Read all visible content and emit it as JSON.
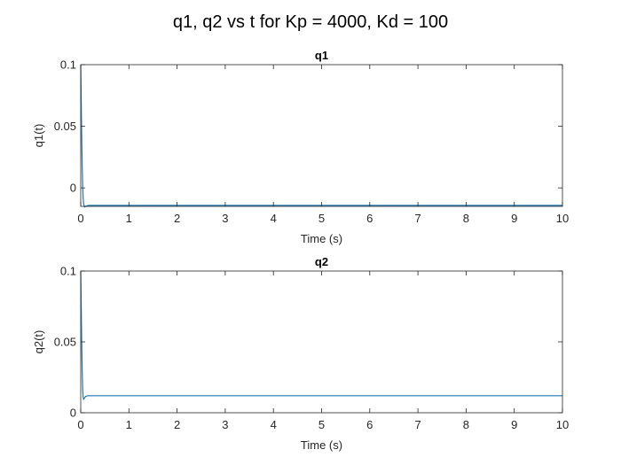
{
  "figure": {
    "title": "q1, q2 vs t for Kp = 4000, Kd = 100"
  },
  "chart_data": [
    {
      "type": "line",
      "title": "q1",
      "xlabel": "Time (s)",
      "ylabel": "q1(t)",
      "xlim": [
        0,
        10
      ],
      "ylim": [
        -0.015,
        0.1
      ],
      "xticks": [
        0,
        1,
        2,
        3,
        4,
        5,
        6,
        7,
        8,
        9,
        10
      ],
      "xtick_labels": [
        "0",
        "1",
        "2",
        "3",
        "4",
        "5",
        "6",
        "7",
        "8",
        "9",
        "10"
      ],
      "yticks": [
        0,
        0.05,
        0.1
      ],
      "ytick_labels": [
        "0",
        "0.05",
        "0.1"
      ],
      "grid": false,
      "color": "#1f77b4",
      "series": [
        {
          "x": [
            0,
            0.01,
            0.02,
            0.03,
            0.04,
            0.05,
            0.06,
            0.08,
            0.1,
            0.15,
            0.2,
            0.5,
            1,
            2,
            3,
            4,
            5,
            6,
            7,
            8,
            9,
            10
          ],
          "y": [
            0.1,
            0.07,
            0.042,
            0.018,
            0.002,
            -0.008,
            -0.013,
            -0.0155,
            -0.015,
            -0.0143,
            -0.0142,
            -0.0142,
            -0.0142,
            -0.0142,
            -0.0142,
            -0.0142,
            -0.0142,
            -0.0142,
            -0.0142,
            -0.0142,
            -0.0142,
            -0.0142
          ]
        }
      ]
    },
    {
      "type": "line",
      "title": "q2",
      "xlabel": "Time (s)",
      "ylabel": "q2(t)",
      "xlim": [
        0,
        10
      ],
      "ylim": [
        0,
        0.1
      ],
      "xticks": [
        0,
        1,
        2,
        3,
        4,
        5,
        6,
        7,
        8,
        9,
        10
      ],
      "xtick_labels": [
        "0",
        "1",
        "2",
        "3",
        "4",
        "5",
        "6",
        "7",
        "8",
        "9",
        "10"
      ],
      "yticks": [
        0,
        0.05,
        0.1
      ],
      "ytick_labels": [
        "0",
        "0.05",
        "0.1"
      ],
      "grid": false,
      "color": "#1f77b4",
      "series": [
        {
          "x": [
            0,
            0.01,
            0.02,
            0.03,
            0.04,
            0.05,
            0.06,
            0.08,
            0.1,
            0.15,
            0.2,
            0.5,
            1,
            2,
            3,
            4,
            5,
            6,
            7,
            8,
            9,
            10
          ],
          "y": [
            0.1,
            0.075,
            0.05,
            0.03,
            0.017,
            0.011,
            0.0095,
            0.0105,
            0.0115,
            0.012,
            0.012,
            0.012,
            0.012,
            0.012,
            0.012,
            0.012,
            0.012,
            0.012,
            0.012,
            0.012,
            0.012,
            0.012
          ]
        }
      ]
    }
  ]
}
